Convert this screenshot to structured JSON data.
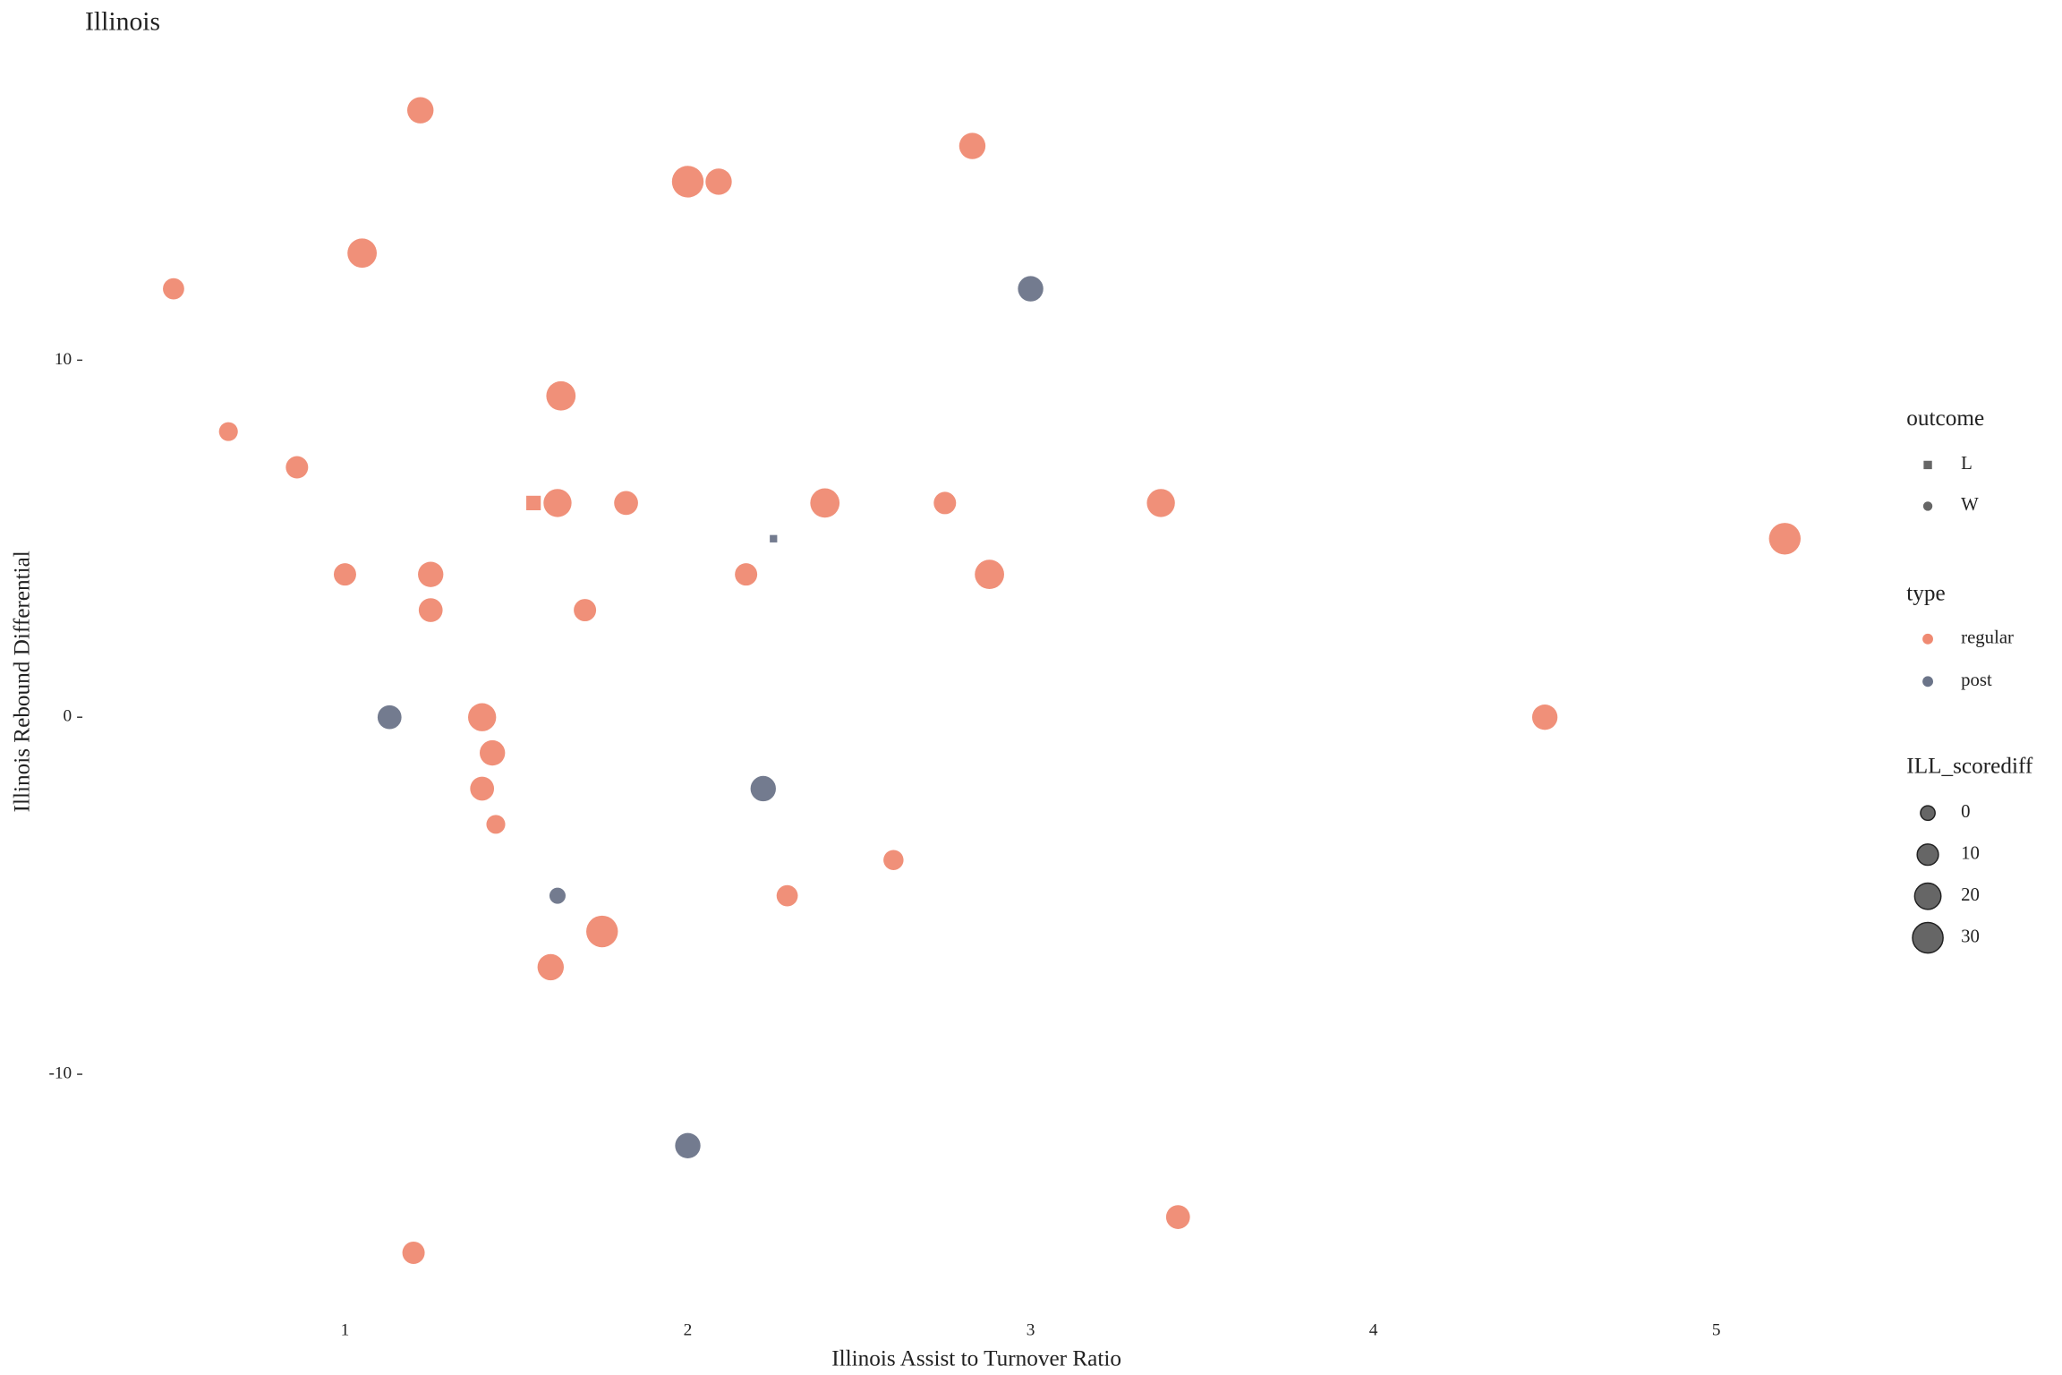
{
  "chart_data": {
    "type": "scatter",
    "title": "Illinois",
    "x_label": "Illinois Assist to Turnover Ratio",
    "y_label": "Illinois Rebound Differential",
    "xlim": [
      0.265,
      5.435
    ],
    "ylim": [
      -16.6,
      18.6
    ],
    "xticks": [
      1,
      2,
      3,
      4,
      5
    ],
    "yticks": [
      -10,
      0,
      10
    ],
    "shape_legend_title": "outcome",
    "shape_legend": [
      {
        "label": "L",
        "shape": "square"
      },
      {
        "label": "W",
        "shape": "circle"
      }
    ],
    "color_legend_title": "type",
    "size_legend_title": "ILL_scorediff",
    "size_ticks": [
      0,
      10,
      20,
      30
    ],
    "series": [
      {
        "name": "regular",
        "color": "#ef8a72",
        "x": [
          1.22,
          2.0,
          2.09,
          2.83,
          1.05,
          0.5,
          1.63,
          0.66,
          0.86,
          1.55,
          1.62,
          1.82,
          2.4,
          2.75,
          3.38,
          5.2,
          1.0,
          1.25,
          2.17,
          2.88,
          1.25,
          1.7,
          1.4,
          4.5,
          1.43,
          1.4,
          1.44,
          2.6,
          2.29,
          1.75,
          1.6,
          3.43,
          1.2
        ],
        "values": [
          17,
          15,
          15,
          16,
          13,
          12,
          9,
          8,
          7,
          6,
          6,
          6,
          6,
          6,
          6,
          5,
          4,
          4,
          4,
          4,
          3,
          3,
          0,
          0,
          -1,
          -2,
          -3,
          -4,
          -5,
          -6,
          -7,
          -14,
          -15
        ],
        "size": [
          20,
          33,
          20,
          20,
          27,
          10,
          27,
          6,
          12,
          2,
          24,
          15,
          27,
          12,
          24,
          33,
          12,
          18,
          12,
          27,
          15,
          12,
          24,
          18,
          18,
          15,
          6,
          8,
          10,
          33,
          20,
          15,
          12
        ],
        "outcome": [
          "W",
          "W",
          "W",
          "W",
          "W",
          "W",
          "W",
          "W",
          "W",
          "L",
          "W",
          "W",
          "W",
          "W",
          "W",
          "W",
          "W",
          "W",
          "W",
          "W",
          "W",
          "W",
          "W",
          "W",
          "W",
          "W",
          "W",
          "W",
          "W",
          "W",
          "W",
          "W",
          "W"
        ]
      },
      {
        "name": "post",
        "color": "#6b7489",
        "x": [
          3.0,
          2.25,
          1.13,
          2.22,
          1.62,
          2.0
        ],
        "values": [
          12,
          5,
          0,
          -2,
          -5,
          -12
        ],
        "size": [
          18,
          -6,
          15,
          18,
          2,
          18
        ],
        "outcome": [
          "W",
          "L",
          "W",
          "W",
          "W",
          "W"
        ]
      }
    ]
  }
}
